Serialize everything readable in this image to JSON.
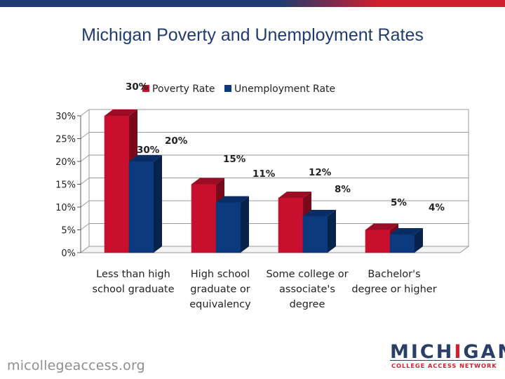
{
  "slide": {
    "title": "Michigan Poverty and Unemployment Rates",
    "footer_url": "micollegeaccess.org",
    "logo": {
      "word_start": "MICH",
      "word_red": "I",
      "word_end": "GAN",
      "tagline": "COLLEGE ACCESS NETWORK"
    },
    "colors": {
      "bar_blue": "#1f3b6f",
      "bar_red": "#d01f2e"
    }
  },
  "chart_data": {
    "type": "bar",
    "title": "",
    "categories": [
      [
        "Less than high",
        "school graduate"
      ],
      [
        "High school",
        "graduate or",
        "equivalency"
      ],
      [
        "Some college or",
        "associate's",
        "degree"
      ],
      [
        "Bachelor's",
        "degree or higher"
      ]
    ],
    "series": [
      {
        "name": "Poverty Rate",
        "color": "#c8102e",
        "values": [
          30,
          15,
          12,
          5
        ],
        "labels": [
          "30%",
          "15%",
          "12%",
          "5%"
        ]
      },
      {
        "name": "Unemployment Rate",
        "color": "#0b3a7e",
        "values": [
          20,
          11,
          8,
          4
        ],
        "labels": [
          "20%",
          "11%",
          "8%",
          "4%"
        ]
      }
    ],
    "yticks": [
      "0%",
      "5%",
      "10%",
      "15%",
      "20%",
      "25%",
      "30%"
    ],
    "ylim": [
      0,
      30
    ],
    "legend": "top-center",
    "grid": true,
    "style": "3d-column"
  }
}
